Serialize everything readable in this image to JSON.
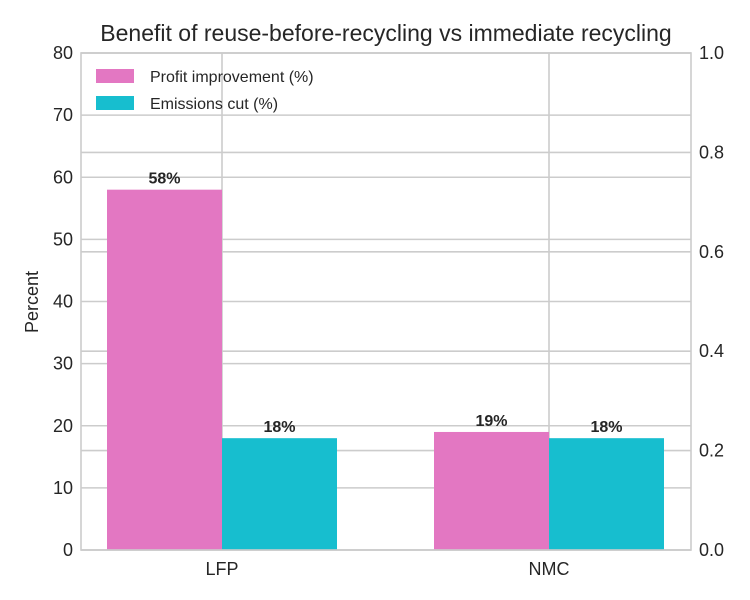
{
  "chart_data": {
    "type": "bar",
    "title": "Benefit of reuse-before-recycling vs immediate recycling",
    "xlabel": "",
    "ylabel": "Percent",
    "categories": [
      "LFP",
      "NMC"
    ],
    "series": [
      {
        "name": "Profit improvement (%)",
        "values": [
          58,
          19
        ],
        "color": "#e377c2",
        "labels": [
          "58%",
          "19%"
        ]
      },
      {
        "name": "Emissions cut (%)",
        "values": [
          18,
          18
        ],
        "color": "#17becf",
        "labels": [
          "18%",
          "18%"
        ]
      }
    ],
    "ylim": [
      0,
      80
    ],
    "yticks": [
      0,
      10,
      20,
      30,
      40,
      50,
      60,
      70,
      80
    ],
    "y2lim": [
      0.0,
      1.0
    ],
    "y2ticks": [
      "0.0",
      "0.2",
      "0.4",
      "0.6",
      "0.8",
      "1.0"
    ],
    "grid": true,
    "legend_position": "top-left"
  }
}
